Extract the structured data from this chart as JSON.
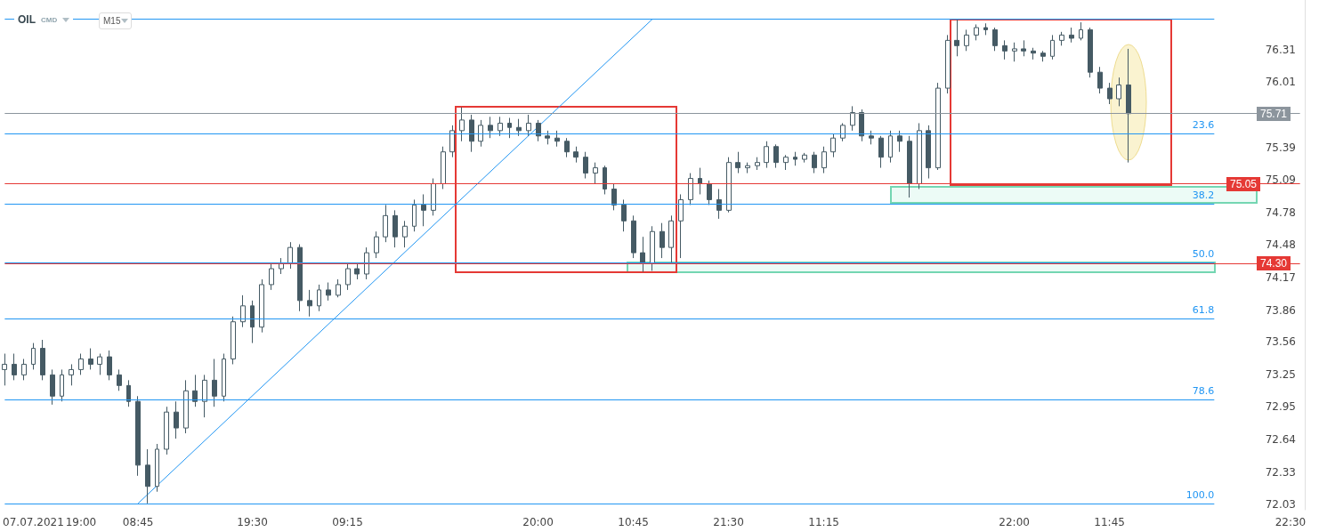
{
  "chart_data": {
    "type": "candlestick",
    "title": "OIL",
    "subtitle": "CMD",
    "categories": [
      null,
      null,
      null,
      "07.07.2021",
      null,
      null,
      null,
      null,
      "19:00",
      null,
      null,
      null,
      null,
      null,
      "08:45",
      null,
      null,
      null,
      null,
      null,
      null,
      null,
      null,
      null,
      null,
      null,
      "19:30",
      null,
      null,
      null,
      null,
      null,
      null,
      null,
      null,
      null,
      "09:15",
      null,
      null,
      null,
      null,
      null,
      null,
      null,
      null,
      null,
      null,
      null,
      null,
      null,
      null,
      null,
      null,
      null,
      null,
      null,
      "20:00",
      null,
      null,
      null,
      null,
      null,
      null,
      null,
      null,
      null,
      "10:45",
      null,
      null,
      null,
      null,
      null,
      null,
      null,
      null,
      null,
      "21:30",
      null,
      null,
      null,
      null,
      null,
      null,
      null,
      null,
      null,
      "11:15",
      null,
      null,
      null,
      null,
      null,
      null,
      null,
      null,
      null,
      null,
      null,
      null,
      null,
      null,
      null,
      null,
      null,
      null,
      null,
      "22:00",
      null,
      null,
      null,
      null,
      null,
      null,
      null,
      null,
      null,
      "11:45",
      null,
      null,
      null,
      null,
      null,
      null,
      null,
      null,
      null,
      null,
      null,
      null,
      null,
      null,
      null,
      null,
      null,
      null,
      "22:30",
      null
    ],
    "series": [
      {
        "color": "#455a64",
        "ohlc": [
          [
            73.3,
            73.45,
            73.15,
            73.35
          ],
          [
            73.35,
            73.45,
            73.2,
            73.25
          ],
          [
            73.25,
            73.4,
            73.2,
            73.35
          ],
          [
            73.35,
            73.55,
            73.3,
            73.5
          ],
          [
            73.5,
            73.58,
            73.2,
            73.25
          ],
          [
            73.25,
            73.3,
            72.97,
            73.05
          ],
          [
            73.05,
            73.3,
            73.0,
            73.25
          ],
          [
            73.25,
            73.35,
            73.15,
            73.3
          ],
          [
            73.3,
            73.45,
            73.25,
            73.4
          ],
          [
            73.4,
            73.5,
            73.3,
            73.35
          ],
          [
            73.35,
            73.45,
            73.25,
            73.42
          ],
          [
            73.42,
            73.48,
            73.2,
            73.25
          ],
          [
            73.25,
            73.3,
            73.1,
            73.15
          ],
          [
            73.15,
            73.2,
            72.95,
            73.0
          ],
          [
            73.0,
            73.05,
            72.3,
            72.4
          ],
          [
            72.4,
            72.55,
            72.04,
            72.2
          ],
          [
            72.2,
            72.6,
            72.15,
            72.55
          ],
          [
            72.55,
            72.95,
            72.5,
            72.9
          ],
          [
            72.9,
            73.0,
            72.65,
            72.75
          ],
          [
            72.75,
            73.2,
            72.7,
            73.1
          ],
          [
            73.1,
            73.25,
            72.95,
            73.0
          ],
          [
            73.0,
            73.25,
            72.85,
            73.2
          ],
          [
            73.2,
            73.4,
            72.95,
            73.05
          ],
          [
            73.05,
            73.45,
            73.0,
            73.4
          ],
          [
            73.4,
            73.8,
            73.35,
            73.75
          ],
          [
            73.75,
            74.0,
            73.7,
            73.9
          ],
          [
            73.9,
            73.95,
            73.55,
            73.7
          ],
          [
            73.7,
            74.15,
            73.65,
            74.1
          ],
          [
            74.1,
            74.3,
            74.05,
            74.25
          ],
          [
            74.25,
            74.35,
            74.2,
            74.3
          ],
          [
            74.3,
            74.5,
            74.25,
            74.45
          ],
          [
            74.45,
            74.48,
            73.85,
            73.95
          ],
          [
            73.95,
            74.05,
            73.8,
            73.9
          ],
          [
            73.9,
            74.1,
            73.85,
            74.05
          ],
          [
            74.05,
            74.12,
            73.95,
            74.0
          ],
          [
            74.0,
            74.15,
            73.98,
            74.1
          ],
          [
            74.1,
            74.3,
            74.05,
            74.25
          ],
          [
            74.25,
            74.3,
            74.15,
            74.2
          ],
          [
            74.2,
            74.45,
            74.15,
            74.4
          ],
          [
            74.4,
            74.6,
            74.35,
            74.55
          ],
          [
            74.55,
            74.85,
            74.5,
            74.75
          ],
          [
            74.75,
            74.8,
            74.45,
            74.55
          ],
          [
            74.55,
            74.7,
            74.45,
            74.65
          ],
          [
            74.65,
            74.9,
            74.6,
            74.85
          ],
          [
            74.85,
            74.95,
            74.65,
            74.8
          ],
          [
            74.8,
            75.1,
            74.75,
            75.05
          ],
          [
            75.05,
            75.4,
            75.0,
            75.35
          ],
          [
            75.35,
            75.6,
            75.3,
            75.55
          ],
          [
            75.55,
            75.77,
            75.45,
            75.65
          ],
          [
            75.65,
            75.7,
            75.35,
            75.45
          ],
          [
            75.45,
            75.65,
            75.4,
            75.6
          ],
          [
            75.6,
            75.68,
            75.48,
            75.55
          ],
          [
            75.55,
            75.68,
            75.5,
            75.62
          ],
          [
            75.62,
            75.67,
            75.48,
            75.58
          ],
          [
            75.58,
            75.66,
            75.5,
            75.55
          ],
          [
            75.55,
            75.7,
            75.5,
            75.62
          ],
          [
            75.62,
            75.65,
            75.45,
            75.5
          ],
          [
            75.5,
            75.55,
            75.42,
            75.48
          ],
          [
            75.48,
            75.55,
            75.4,
            75.45
          ],
          [
            75.45,
            75.48,
            75.3,
            75.35
          ],
          [
            75.35,
            75.4,
            75.25,
            75.3
          ],
          [
            75.3,
            75.35,
            75.1,
            75.15
          ],
          [
            75.15,
            75.25,
            75.05,
            75.2
          ],
          [
            75.2,
            75.22,
            74.95,
            75.0
          ],
          [
            75.0,
            75.05,
            74.8,
            74.85
          ],
          [
            74.85,
            74.9,
            74.6,
            74.7
          ],
          [
            74.7,
            74.75,
            74.35,
            74.4
          ],
          [
            74.4,
            74.55,
            74.22,
            74.3
          ],
          [
            74.3,
            74.65,
            74.23,
            74.6
          ],
          [
            74.6,
            74.68,
            74.35,
            74.45
          ],
          [
            74.45,
            74.75,
            74.3,
            74.7
          ],
          [
            74.7,
            74.95,
            74.35,
            74.9
          ],
          [
            74.9,
            75.15,
            74.85,
            75.1
          ],
          [
            75.1,
            75.2,
            74.95,
            75.05
          ],
          [
            75.05,
            75.08,
            74.85,
            74.9
          ],
          [
            74.9,
            75.0,
            74.72,
            74.8
          ],
          [
            74.8,
            75.3,
            74.78,
            75.25
          ],
          [
            75.25,
            75.35,
            75.15,
            75.2
          ],
          [
            75.2,
            75.25,
            75.15,
            75.22
          ],
          [
            75.22,
            75.3,
            75.18,
            75.25
          ],
          [
            75.25,
            75.45,
            75.2,
            75.4
          ],
          [
            75.4,
            75.42,
            75.2,
            75.25
          ],
          [
            75.25,
            75.32,
            75.18,
            75.3
          ],
          [
            75.3,
            75.35,
            75.22,
            75.28
          ],
          [
            75.28,
            75.34,
            75.25,
            75.32
          ],
          [
            75.32,
            75.35,
            75.15,
            75.2
          ],
          [
            75.2,
            75.4,
            75.15,
            75.35
          ],
          [
            75.35,
            75.52,
            75.3,
            75.48
          ],
          [
            75.48,
            75.62,
            75.45,
            75.6
          ],
          [
            75.6,
            75.78,
            75.55,
            75.72
          ],
          [
            75.72,
            75.75,
            75.45,
            75.5
          ],
          [
            75.5,
            75.55,
            75.42,
            75.48
          ],
          [
            75.48,
            75.5,
            75.2,
            75.3
          ],
          [
            75.3,
            75.55,
            75.25,
            75.5
          ],
          [
            75.5,
            75.55,
            75.35,
            75.45
          ],
          [
            75.45,
            75.5,
            74.92,
            75.05
          ],
          [
            75.05,
            75.62,
            75.0,
            75.55
          ],
          [
            75.55,
            75.6,
            75.1,
            75.2
          ],
          [
            75.2,
            76.0,
            75.18,
            75.95
          ],
          [
            75.95,
            76.45,
            75.9,
            76.4
          ],
          [
            76.4,
            76.6,
            76.25,
            76.35
          ],
          [
            76.35,
            76.5,
            76.3,
            76.45
          ],
          [
            76.45,
            76.55,
            76.4,
            76.52
          ],
          [
            76.52,
            76.56,
            76.45,
            76.5
          ],
          [
            76.5,
            76.52,
            76.3,
            76.35
          ],
          [
            76.35,
            76.4,
            76.22,
            76.3
          ],
          [
            76.3,
            76.38,
            76.2,
            76.32
          ],
          [
            76.32,
            76.4,
            76.25,
            76.3
          ],
          [
            76.3,
            76.33,
            76.22,
            76.28
          ],
          [
            76.28,
            76.3,
            76.2,
            76.25
          ],
          [
            76.25,
            76.45,
            76.22,
            76.4
          ],
          [
            76.4,
            76.48,
            76.35,
            76.45
          ],
          [
            76.45,
            76.52,
            76.38,
            76.42
          ],
          [
            76.42,
            76.57,
            76.4,
            76.5
          ],
          [
            76.5,
            76.52,
            76.05,
            76.1
          ],
          [
            76.1,
            76.15,
            75.9,
            75.95
          ],
          [
            75.95,
            76.0,
            75.8,
            75.85
          ],
          [
            75.85,
            76.05,
            75.78,
            75.98
          ],
          [
            75.98,
            76.32,
            75.25,
            75.71
          ],
          null,
          null,
          null,
          null,
          null,
          null,
          null,
          null,
          null,
          null,
          null,
          null,
          null,
          null,
          null,
          null,
          null,
          null
        ]
      },
      {
        "type": "line",
        "color": "#2196f3",
        "values": [
          null,
          null,
          null,
          null,
          null,
          null,
          null,
          null,
          null,
          null,
          null,
          null,
          null,
          null,
          72.04,
          null,
          null,
          null,
          null,
          null,
          null,
          null,
          null,
          null,
          null,
          null,
          null,
          null,
          null,
          null,
          null,
          null,
          null,
          null,
          null,
          null,
          null,
          null,
          null,
          null,
          null,
          null,
          null,
          null,
          null,
          null,
          null,
          null,
          null,
          null,
          null,
          null,
          null,
          null,
          null,
          null,
          null,
          null,
          null,
          null,
          null,
          null,
          null,
          null,
          null,
          null,
          null,
          null,
          76.6,
          null,
          null,
          null,
          null,
          null,
          null,
          null,
          null,
          null,
          null,
          null,
          null,
          null,
          null,
          null,
          null,
          null,
          null,
          null,
          null,
          null,
          null,
          null,
          null,
          null,
          null,
          null,
          null,
          null,
          null,
          null,
          null,
          null,
          null,
          null,
          null,
          null,
          null,
          null,
          null,
          null,
          null,
          null,
          null,
          null,
          null,
          null,
          null,
          null,
          null,
          null,
          null,
          null,
          null,
          null,
          null,
          null,
          null,
          null,
          null,
          null,
          null,
          null,
          null,
          null,
          null,
          null,
          null
        ]
      }
    ],
    "ylim": [
      71.98,
      76.78
    ],
    "yticks": [
      72.03,
      72.33,
      72.64,
      72.95,
      73.25,
      73.56,
      73.86,
      74.17,
      74.48,
      74.78,
      75.09,
      75.39,
      76.01,
      76.31
    ],
    "ref_lines": [
      {
        "axis": "y",
        "value": 76.6,
        "label": null,
        "color": "#2196f3"
      },
      {
        "axis": "y",
        "value": 75.52,
        "label": null,
        "color": "#2196f3"
      },
      {
        "axis": "y",
        "value": 74.86,
        "label": null,
        "color": "#2196f3"
      },
      {
        "axis": "y",
        "value": 74.31,
        "label": null,
        "color": "#2196f3"
      },
      {
        "axis": "y",
        "value": 73.78,
        "label": null,
        "color": "#2196f3"
      },
      {
        "axis": "y",
        "value": 73.02,
        "label": null,
        "color": "#2196f3"
      },
      {
        "axis": "y",
        "value": 72.04,
        "label": null,
        "color": "#2196f3"
      },
      {
        "axis": "y",
        "value": 75.71,
        "label": "75.71",
        "color": "#8c959d"
      },
      {
        "axis": "y",
        "value": 75.05,
        "label": "75.05",
        "color": "#e53935"
      },
      {
        "axis": "y",
        "value": 74.3,
        "label": "74.30",
        "color": "#e53935"
      }
    ],
    "annotations": [
      "M15",
      {
        "text": "23.6",
        "y": 75.52
      },
      {
        "text": "38.2",
        "y": 74.86
      },
      {
        "text": "50.0",
        "y": 74.31
      },
      {
        "text": "61.8",
        "y": 73.78
      },
      {
        "text": "78.6",
        "y": 73.02
      },
      {
        "text": "100.0",
        "y": 72.04
      }
    ]
  }
}
